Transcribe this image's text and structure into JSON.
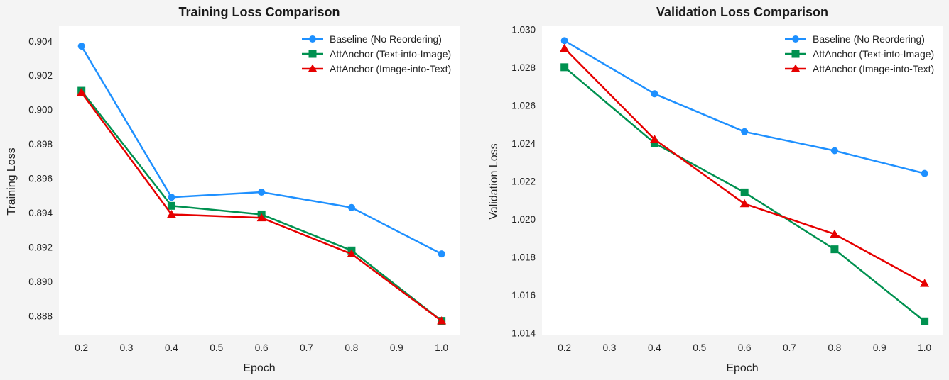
{
  "chart_data": [
    {
      "type": "line",
      "title": "Training Loss Comparison",
      "xlabel": "Epoch",
      "ylabel": "Training Loss",
      "xlim": [
        0.15,
        1.04
      ],
      "ylim": [
        0.8869,
        0.9049
      ],
      "xticks": [
        0.2,
        0.3,
        0.4,
        0.5,
        0.6,
        0.7,
        0.8,
        0.9,
        1.0
      ],
      "xtick_labels": [
        "0.2",
        "0.3",
        "0.4",
        "0.5",
        "0.6",
        "0.7",
        "0.8",
        "0.9",
        "1.0"
      ],
      "yticks": [
        0.888,
        0.89,
        0.892,
        0.894,
        0.896,
        0.898,
        0.9,
        0.902,
        0.904
      ],
      "ytick_labels": [
        "0.888",
        "0.890",
        "0.892",
        "0.894",
        "0.896",
        "0.898",
        "0.900",
        "0.902",
        "0.904"
      ],
      "grid": false,
      "legend_position": "top-right",
      "x": [
        0.2,
        0.4,
        0.6,
        0.8,
        1.0
      ],
      "series": [
        {
          "name": "Baseline (No Reordering)",
          "values": [
            0.9037,
            0.8949,
            0.8952,
            0.8943,
            0.8916
          ],
          "color": "#1e90ff",
          "marker": "circle"
        },
        {
          "name": "AttAnchor (Text-into-Image)",
          "values": [
            0.9011,
            0.8944,
            0.8939,
            0.8918,
            0.8877
          ],
          "color": "#009150",
          "marker": "square"
        },
        {
          "name": "AttAnchor (Image-into-Text)",
          "values": [
            0.901,
            0.8939,
            0.8937,
            0.8916,
            0.8877
          ],
          "color": "#e60000",
          "marker": "triangle"
        }
      ]
    },
    {
      "type": "line",
      "title": "Validation Loss Comparison",
      "xlabel": "Epoch",
      "ylabel": "Validation Loss",
      "xlim": [
        0.15,
        1.04
      ],
      "ylim": [
        1.0139,
        1.0302
      ],
      "xticks": [
        0.2,
        0.3,
        0.4,
        0.5,
        0.6,
        0.7,
        0.8,
        0.9,
        1.0
      ],
      "xtick_labels": [
        "0.2",
        "0.3",
        "0.4",
        "0.5",
        "0.6",
        "0.7",
        "0.8",
        "0.9",
        "1.0"
      ],
      "yticks": [
        1.014,
        1.016,
        1.018,
        1.02,
        1.022,
        1.024,
        1.026,
        1.028,
        1.03
      ],
      "ytick_labels": [
        "1.014",
        "1.016",
        "1.018",
        "1.020",
        "1.022",
        "1.024",
        "1.026",
        "1.028",
        "1.030"
      ],
      "grid": false,
      "legend_position": "top-right",
      "x": [
        0.2,
        0.4,
        0.6,
        0.8,
        1.0
      ],
      "series": [
        {
          "name": "Baseline (No Reordering)",
          "values": [
            1.0294,
            1.0266,
            1.0246,
            1.0236,
            1.0224
          ],
          "color": "#1e90ff",
          "marker": "circle"
        },
        {
          "name": "AttAnchor (Text-into-Image)",
          "values": [
            1.028,
            1.024,
            1.0214,
            1.0184,
            1.0146
          ],
          "color": "#009150",
          "marker": "square"
        },
        {
          "name": "AttAnchor (Image-into-Text)",
          "values": [
            1.029,
            1.0242,
            1.0208,
            1.0192,
            1.0166
          ],
          "color": "#e60000",
          "marker": "triangle"
        }
      ]
    }
  ]
}
